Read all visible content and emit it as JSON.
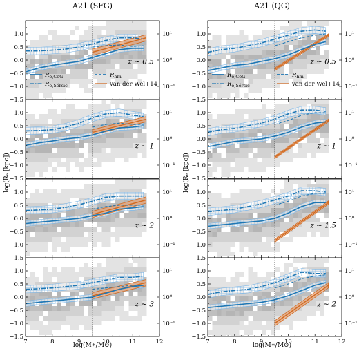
{
  "figure": {
    "xlabel": "log(M∗/M⊙)",
    "ylabel": "log(Rₑ [kpc])",
    "x_ticks": [
      "7",
      "8",
      "9",
      "10",
      "11",
      "12"
    ],
    "y_ticks": [
      "−1.5",
      "−1.0",
      "−0.5",
      "0.0",
      "0.5",
      "1.0"
    ],
    "y2_ticks": [
      "10⁻¹",
      "10⁰",
      "10¹"
    ]
  },
  "chart_data": [
    {
      "type": "line",
      "column": "A21 (SFG)",
      "title": "A21 (SFG)",
      "redshift_label": "z ∼ 0.5",
      "xlim": [
        7,
        12
      ],
      "ylim": [
        -1.5,
        1.5
      ],
      "divider_x": 9.5,
      "legend": true,
      "x": [
        7.0,
        7.5,
        8.0,
        8.5,
        9.0,
        9.5,
        10.0,
        10.5,
        11.0,
        11.4
      ],
      "series": [
        {
          "name": "R_e,CoG",
          "style": "solid",
          "values": [
            -0.45,
            -0.3,
            -0.2,
            -0.12,
            -0.05,
            0.1,
            0.25,
            0.4,
            0.45,
            0.45
          ]
        },
        {
          "name": "R_e,Sérsic",
          "style": "dashdot",
          "values": [
            0.35,
            0.35,
            0.38,
            0.42,
            0.5,
            0.62,
            0.75,
            0.85,
            0.85,
            0.8
          ]
        },
        {
          "name": "R_hm",
          "style": "dashed",
          "values": [
            null,
            null,
            null,
            null,
            null,
            0.5,
            0.55,
            0.58,
            0.52,
            0.55
          ]
        }
      ],
      "vdw_band": {
        "name": "van der Wel+14",
        "x": [
          9.5,
          11.5
        ],
        "center": [
          0.3,
          0.85
        ],
        "halfwidth": 0.12
      }
    },
    {
      "type": "line",
      "column": "A21 (QG)",
      "title": "A21 (QG)",
      "redshift_label": "z ∼ 0.5",
      "xlim": [
        7,
        12
      ],
      "ylim": [
        -1.5,
        1.5
      ],
      "divider_x": 9.5,
      "legend": true,
      "x": [
        7.0,
        7.5,
        8.0,
        8.5,
        9.0,
        9.5,
        10.0,
        10.5,
        11.0,
        11.4
      ],
      "series": [
        {
          "name": "R_e,CoG",
          "style": "solid",
          "values": [
            -0.4,
            -0.3,
            -0.2,
            -0.15,
            -0.05,
            0.05,
            0.2,
            0.4,
            0.6,
            0.7
          ]
        },
        {
          "name": "R_e,Sérsic",
          "style": "dashdot",
          "values": [
            0.3,
            0.4,
            0.45,
            0.55,
            0.65,
            0.8,
            0.95,
            1.1,
            1.15,
            1.1
          ]
        },
        {
          "name": "R_hm",
          "style": "dashed",
          "values": [
            null,
            null,
            null,
            null,
            null,
            0.55,
            0.7,
            0.85,
            0.95,
            1.0
          ]
        }
      ],
      "vdw_band": {
        "name": "van der Wel+14",
        "x": [
          9.5,
          11.5
        ],
        "center": [
          -0.35,
          0.95
        ],
        "halfwidth": 0.05
      }
    },
    {
      "type": "line",
      "column": "A21 (SFG)",
      "redshift_label": "z ∼ 1",
      "xlim": [
        7,
        12
      ],
      "ylim": [
        -1.5,
        1.5
      ],
      "divider_x": 9.5,
      "legend": false,
      "x": [
        7.0,
        7.5,
        8.0,
        8.5,
        9.0,
        9.5,
        10.0,
        10.5,
        11.0,
        11.4
      ],
      "series": [
        {
          "name": "R_e,CoG",
          "style": "solid",
          "values": [
            -0.25,
            -0.15,
            -0.08,
            0.0,
            0.05,
            0.15,
            0.3,
            0.42,
            0.45,
            0.5
          ]
        },
        {
          "name": "R_e,Sérsic",
          "style": "dashdot",
          "values": [
            0.3,
            0.32,
            0.35,
            0.45,
            0.6,
            0.8,
            0.95,
            1.0,
            0.9,
            0.85
          ]
        },
        {
          "name": "R_hm",
          "style": "dashed",
          "values": [
            null,
            null,
            null,
            null,
            null,
            0.45,
            0.55,
            0.6,
            0.55,
            0.55
          ]
        }
      ],
      "vdw_band": {
        "name": "van der Wel+14",
        "x": [
          9.5,
          11.5
        ],
        "center": [
          0.25,
          0.75
        ],
        "halfwidth": 0.1
      }
    },
    {
      "type": "line",
      "column": "A21 (QG)",
      "redshift_label": "z ∼ 1",
      "xlim": [
        7,
        12
      ],
      "ylim": [
        -1.5,
        1.5
      ],
      "divider_x": 9.5,
      "legend": false,
      "x": [
        7.0,
        7.5,
        8.0,
        8.5,
        9.0,
        9.5,
        10.0,
        10.5,
        11.0,
        11.4
      ],
      "series": [
        {
          "name": "R_e,CoG",
          "style": "solid",
          "values": [
            -0.3,
            -0.2,
            -0.1,
            -0.05,
            0.0,
            0.1,
            0.25,
            0.45,
            0.6,
            0.65
          ]
        },
        {
          "name": "R_e,Sérsic",
          "style": "dashdot",
          "values": [
            0.25,
            0.35,
            0.4,
            0.5,
            0.6,
            0.75,
            0.95,
            1.1,
            1.1,
            1.05
          ]
        },
        {
          "name": "R_hm",
          "style": "dashed",
          "values": [
            null,
            null,
            null,
            null,
            null,
            0.55,
            0.7,
            0.9,
            1.0,
            1.0
          ]
        }
      ],
      "vdw_band": {
        "name": "van der Wel+14",
        "x": [
          9.5,
          11.5
        ],
        "center": [
          -0.7,
          0.7
        ],
        "halfwidth": 0.05
      }
    },
    {
      "type": "line",
      "column": "A21 (SFG)",
      "redshift_label": "z ∼ 2",
      "xlim": [
        7,
        12
      ],
      "ylim": [
        -1.5,
        1.5
      ],
      "divider_x": 9.5,
      "legend": false,
      "x": [
        7.0,
        7.5,
        8.0,
        8.5,
        9.0,
        9.5,
        10.0,
        10.5,
        11.0,
        11.4
      ],
      "series": [
        {
          "name": "R_e,CoG",
          "style": "solid",
          "values": [
            -0.2,
            -0.15,
            -0.1,
            -0.05,
            0.0,
            0.1,
            0.2,
            0.35,
            0.4,
            0.45
          ]
        },
        {
          "name": "R_e,Sérsic",
          "style": "dashdot",
          "values": [
            0.3,
            0.32,
            0.35,
            0.42,
            0.52,
            0.65,
            0.8,
            0.85,
            0.85,
            0.85
          ]
        },
        {
          "name": "R_hm",
          "style": "dashed",
          "values": [
            null,
            null,
            null,
            null,
            null,
            0.35,
            0.45,
            0.5,
            0.5,
            0.5
          ]
        }
      ],
      "vdw_band": {
        "name": "van der Wel+14",
        "x": [
          9.5,
          11.5
        ],
        "center": [
          0.15,
          0.7
        ],
        "halfwidth": 0.12
      }
    },
    {
      "type": "line",
      "column": "A21 (QG)",
      "redshift_label": "z ∼ 1.5",
      "xlim": [
        7,
        12
      ],
      "ylim": [
        -1.5,
        1.5
      ],
      "divider_x": 9.5,
      "legend": false,
      "x": [
        7.0,
        7.5,
        8.0,
        8.5,
        9.0,
        9.5,
        10.0,
        10.5,
        11.0,
        11.4
      ],
      "series": [
        {
          "name": "R_e,CoG",
          "style": "solid",
          "values": [
            -0.3,
            -0.25,
            -0.2,
            -0.15,
            -0.1,
            0.0,
            0.2,
            0.45,
            0.6,
            0.6
          ]
        },
        {
          "name": "R_e,Sérsic",
          "style": "dashdot",
          "values": [
            0.25,
            0.3,
            0.35,
            0.45,
            0.55,
            0.7,
            0.85,
            1.05,
            1.05,
            1.0
          ]
        },
        {
          "name": "R_hm",
          "style": "dashed",
          "values": [
            null,
            null,
            null,
            null,
            null,
            0.5,
            0.65,
            0.85,
            0.95,
            0.95
          ]
        }
      ],
      "vdw_band": {
        "name": "van der Wel+14",
        "x": [
          9.5,
          11.5
        ],
        "center": [
          -0.85,
          0.6
        ],
        "halfwidth": 0.06
      }
    },
    {
      "type": "line",
      "column": "A21 (SFG)",
      "redshift_label": "z ∼ 3",
      "xlim": [
        7,
        12
      ],
      "ylim": [
        -1.5,
        1.5
      ],
      "divider_x": 9.5,
      "legend": false,
      "x": [
        7.0,
        7.5,
        8.0,
        8.5,
        9.0,
        9.5,
        10.0,
        10.5,
        11.0,
        11.4
      ],
      "series": [
        {
          "name": "R_e,CoG",
          "style": "solid",
          "values": [
            -0.25,
            -0.2,
            -0.15,
            -0.1,
            -0.05,
            0.0,
            0.15,
            0.3,
            0.4,
            0.45
          ]
        },
        {
          "name": "R_e,Sérsic",
          "style": "dashdot",
          "values": [
            0.3,
            0.32,
            0.35,
            0.4,
            0.45,
            0.55,
            0.65,
            0.75,
            0.75,
            0.8
          ]
        },
        {
          "name": "R_hm",
          "style": "dashed",
          "values": [
            null,
            null,
            null,
            null,
            null,
            0.3,
            0.35,
            0.4,
            0.45,
            0.45
          ]
        }
      ],
      "vdw_band": {
        "name": "van der Wel+14",
        "x": [
          9.5,
          11.5
        ],
        "center": [
          0.05,
          0.55
        ],
        "halfwidth": 0.12
      }
    },
    {
      "type": "line",
      "column": "A21 (QG)",
      "redshift_label": "z ∼ 2",
      "xlim": [
        7,
        12
      ],
      "ylim": [
        -1.5,
        1.5
      ],
      "divider_x": 9.5,
      "legend": false,
      "x": [
        7.0,
        7.5,
        8.0,
        8.5,
        9.0,
        9.5,
        10.0,
        10.5,
        11.0,
        11.4
      ],
      "series": [
        {
          "name": "R_e,CoG",
          "style": "solid",
          "values": [
            -0.4,
            -0.35,
            -0.3,
            -0.25,
            -0.2,
            -0.1,
            0.05,
            0.25,
            0.45,
            0.55
          ]
        },
        {
          "name": "R_e,Sérsic",
          "style": "dashdot",
          "values": [
            0.1,
            0.2,
            0.25,
            0.3,
            0.4,
            0.55,
            0.75,
            0.95,
            0.9,
            0.9
          ]
        },
        {
          "name": "R_hm",
          "style": "dashed",
          "values": [
            null,
            null,
            null,
            null,
            null,
            0.35,
            0.5,
            0.7,
            0.8,
            0.85
          ]
        }
      ],
      "vdw_band": {
        "name": "van der Wel+14",
        "x": [
          9.5,
          11.5
        ],
        "center": [
          -1.0,
          0.45
        ],
        "halfwidth": 0.1
      }
    }
  ],
  "legend_labels": {
    "cog": "R",
    "cog_sub": "e,CoG",
    "sersic": "R",
    "sersic_sub": "e,Sérsic",
    "hm": "R",
    "hm_sub": "hm",
    "vdw": "van der Wel+14"
  },
  "colors": {
    "blue": "#1f77b4",
    "hatch": "#7fb7e6",
    "orange": "#d2691e",
    "orange_fill": "#e8a57a",
    "gray_light": "#e3e3e3",
    "gray_mid": "#bfbfbf"
  }
}
